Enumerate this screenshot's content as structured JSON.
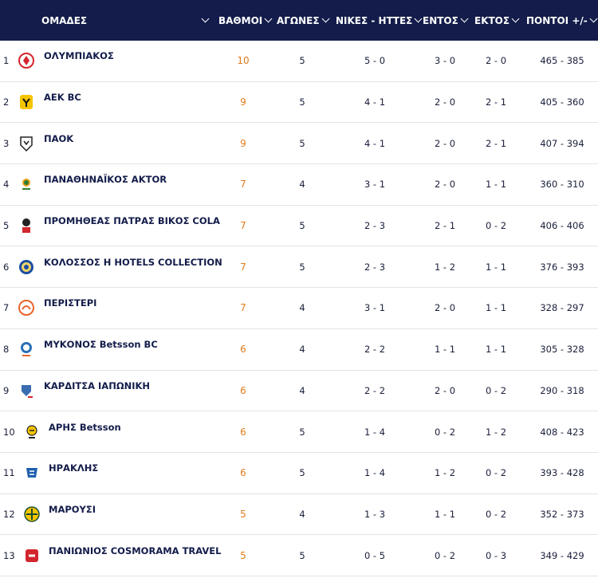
{
  "header": {
    "teams": "ΟΜΑΔΕΣ",
    "points": "ΒΑΘΜΟΙ",
    "games": "ΑΓΩΝΕΣ",
    "wl": "ΝΙΚΕΣ - ΗΤΤΕΣ",
    "home": "ΕΝΤΟΣ",
    "away": "ΕΚΤΟΣ",
    "pf": "ΠΟΝΤΟΙ +/-"
  },
  "colors": {
    "header_bg": "#131c4a",
    "points_accent": "#e07b1a",
    "text": "#1a1f3a"
  },
  "rows": [
    {
      "rank": "1",
      "team": "ΟΛΥΜΠΙΑΚΟΣ",
      "points": "10",
      "games": "5",
      "wl": "5 - 0",
      "home": "3 - 0",
      "away": "2 - 0",
      "pf": "465 - 385",
      "logo": "olympiakos-logo"
    },
    {
      "rank": "2",
      "team": "ΑΕΚ BC",
      "points": "9",
      "games": "5",
      "wl": "4 - 1",
      "home": "2 - 0",
      "away": "2 - 1",
      "pf": "405 - 360",
      "logo": "aek-logo"
    },
    {
      "rank": "3",
      "team": "ΠΑΟΚ",
      "points": "9",
      "games": "5",
      "wl": "4 - 1",
      "home": "2 - 0",
      "away": "2 - 1",
      "pf": "407 - 394",
      "logo": "paok-logo"
    },
    {
      "rank": "4",
      "team": "ΠΑΝΑΘΗΝΑΪΚΟΣ AKTOR",
      "points": "7",
      "games": "4",
      "wl": "3 - 1",
      "home": "2 - 0",
      "away": "1 - 1",
      "pf": "360 - 310",
      "logo": "panathinaikos-logo"
    },
    {
      "rank": "5",
      "team": "ΠΡΟΜΗΘΕΑΣ ΠΑΤΡΑΣ ΒΙΚΟΣ COLA",
      "points": "7",
      "games": "5",
      "wl": "2 - 3",
      "home": "2 - 1",
      "away": "0 - 2",
      "pf": "406 - 406",
      "logo": "promitheas-logo"
    },
    {
      "rank": "6",
      "team": "ΚΟΛΟΣΣΟΣ H HOTELS COLLECTION",
      "points": "7",
      "games": "5",
      "wl": "2 - 3",
      "home": "1 - 2",
      "away": "1 - 1",
      "pf": "376 - 393",
      "logo": "kolossos-logo"
    },
    {
      "rank": "7",
      "team": "ΠΕΡΙΣΤΕΡΙ",
      "points": "7",
      "games": "4",
      "wl": "3 - 1",
      "home": "2 - 0",
      "away": "1 - 1",
      "pf": "328 - 297",
      "logo": "peristeri-logo"
    },
    {
      "rank": "8",
      "team": "ΜΥΚΟΝΟΣ Betsson BC",
      "points": "6",
      "games": "4",
      "wl": "2 - 2",
      "home": "1 - 1",
      "away": "1 - 1",
      "pf": "305 - 328",
      "logo": "mykonos-logo"
    },
    {
      "rank": "9",
      "team": "ΚΑΡΔΙΤΣΑ ΙΑΠΩΝΙΚΗ",
      "points": "6",
      "games": "4",
      "wl": "2 - 2",
      "home": "2 - 0",
      "away": "0 - 2",
      "pf": "290 - 318",
      "logo": "karditsa-logo"
    },
    {
      "rank": "10",
      "team": "ΑΡΗΣ Betsson",
      "points": "6",
      "games": "5",
      "wl": "1 - 4",
      "home": "0 - 2",
      "away": "1 - 2",
      "pf": "408 - 423",
      "logo": "aris-logo"
    },
    {
      "rank": "11",
      "team": "ΗΡΑΚΛΗΣ",
      "points": "6",
      "games": "5",
      "wl": "1 - 4",
      "home": "1 - 2",
      "away": "0 - 2",
      "pf": "393 - 428",
      "logo": "iraklis-logo"
    },
    {
      "rank": "12",
      "team": "ΜΑΡΟΥΣΙ",
      "points": "5",
      "games": "4",
      "wl": "1 - 3",
      "home": "1 - 1",
      "away": "0 - 2",
      "pf": "352 - 373",
      "logo": "marousi-logo"
    },
    {
      "rank": "13",
      "team": "ΠΑΝΙΩΝΙΟΣ COSMORAMA TRAVEL",
      "points": "5",
      "games": "5",
      "wl": "0 - 5",
      "home": "0 - 2",
      "away": "0 - 3",
      "pf": "349 - 429",
      "logo": "panionios-logo"
    }
  ]
}
